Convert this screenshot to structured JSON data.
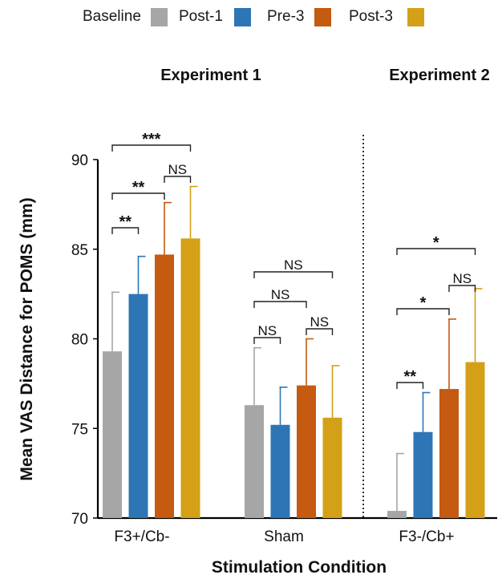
{
  "chart_data": {
    "type": "bar",
    "ylabel": "Mean VAS Distance for POMS (mm)",
    "xlabel": "Stimulation Condition",
    "ylim": [
      70,
      90
    ],
    "yticks": [
      70,
      75,
      80,
      85,
      90
    ],
    "grid": false,
    "legend_position": "top",
    "legend": [
      "Baseline",
      "Post-1",
      "Pre-3",
      "Post-3"
    ],
    "colors": {
      "Baseline": "#a6a6a6",
      "Post-1": "#2e75b6",
      "Pre-3": "#c55a11",
      "Post-3": "#d4a017"
    },
    "groups": [
      {
        "label": "Experiment 1",
        "categories": [
          "F3+/Cb-",
          "Sham"
        ]
      },
      {
        "label": "Experiment 2",
        "categories": [
          "F3-/Cb+"
        ]
      }
    ],
    "categories": [
      "F3+/Cb-",
      "Sham",
      "F3-/Cb+"
    ],
    "series": [
      {
        "name": "Baseline",
        "values": [
          79.3,
          76.3,
          70.4
        ],
        "error": [
          3.3,
          3.2,
          3.2
        ]
      },
      {
        "name": "Post-1",
        "values": [
          82.5,
          75.2,
          74.8
        ],
        "error": [
          2.1,
          2.1,
          2.2
        ]
      },
      {
        "name": "Pre-3",
        "values": [
          84.7,
          77.4,
          77.2
        ],
        "error": [
          2.9,
          2.6,
          3.9
        ]
      },
      {
        "name": "Post-3",
        "values": [
          85.6,
          75.6,
          78.7
        ],
        "error": [
          2.9,
          2.9,
          4.1
        ]
      }
    ],
    "annotations": [
      {
        "category": 0,
        "from": 0,
        "to": 1,
        "label": "**"
      },
      {
        "category": 0,
        "from": 0,
        "to": 2,
        "label": "**"
      },
      {
        "category": 0,
        "from": 2,
        "to": 3,
        "label": "NS"
      },
      {
        "category": 0,
        "from": 0,
        "to": 3,
        "label": "***"
      },
      {
        "category": 1,
        "from": 0,
        "to": 1,
        "label": "NS"
      },
      {
        "category": 1,
        "from": 0,
        "to": 2,
        "label": "NS"
      },
      {
        "category": 1,
        "from": 2,
        "to": 3,
        "label": "NS"
      },
      {
        "category": 1,
        "from": 0,
        "to": 3,
        "label": "NS"
      },
      {
        "category": 2,
        "from": 0,
        "to": 1,
        "label": "**"
      },
      {
        "category": 2,
        "from": 0,
        "to": 2,
        "label": "*"
      },
      {
        "category": 2,
        "from": 2,
        "to": 3,
        "label": "NS"
      },
      {
        "category": 2,
        "from": 0,
        "to": 3,
        "label": "*"
      }
    ]
  }
}
